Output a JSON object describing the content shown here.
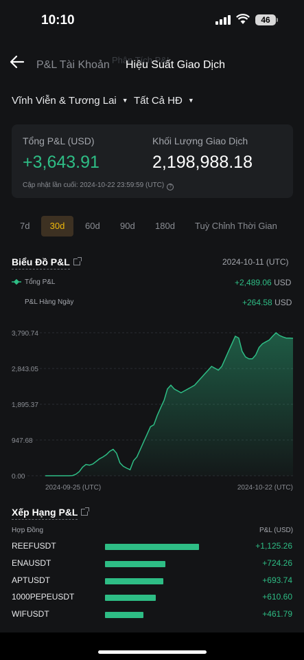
{
  "status_bar": {
    "time": "10:10",
    "battery": "46"
  },
  "header": {
    "tab_account": "P&L Tài Khoản",
    "tab_ghost": "Phân Tích P&L",
    "tab_active": "Hiệu Suất Giao Dịch"
  },
  "filters": {
    "market": "Vĩnh Viễn & Tương Lai",
    "contract": "Tất Cả HĐ"
  },
  "summary": {
    "pnl_label": "Tổng P&L (USD)",
    "pnl_value": "+3,643.91",
    "volume_label": "Khối Lượng Giao Dịch",
    "volume_value": "2,198,988.18",
    "updated": "Cập nhật lần cuối: 2024-10-22 23:59:59 (UTC)"
  },
  "ranges": [
    "7d",
    "30d",
    "60d",
    "90d",
    "180d",
    "Tuỳ Chỉnh Thời Gian"
  ],
  "ranges_active": "30d",
  "chart_section": {
    "title": "Biểu Đồ P&L",
    "date": "2024-10-11 (UTC)",
    "legend1_label": "Tổng P&L",
    "legend1_value": "+2,489.06",
    "legend2_label": "P&L Hàng Ngày",
    "legend2_value": "+264.58",
    "unit": "USD"
  },
  "chart_data": {
    "type": "area",
    "title": "",
    "xlabel": "",
    "ylabel": "",
    "y_ticks": [
      "3,790.74",
      "2,843.05",
      "1,895.37",
      "947.68",
      "0.00"
    ],
    "y_tick_values": [
      3790.74,
      2843.05,
      1895.37,
      947.68,
      0
    ],
    "ylim": [
      0,
      3790.74
    ],
    "x_tick_labels": [
      "2024-09-25 (UTC)",
      "2024-10-22 (UTC)"
    ],
    "grid": true,
    "series": [
      {
        "values": [
          0,
          0,
          0,
          0,
          0,
          0,
          0,
          0,
          5,
          40,
          110,
          230,
          300,
          280,
          310,
          380,
          450,
          500,
          560,
          650,
          700,
          600,
          340,
          250,
          200,
          160,
          400,
          500,
          700,
          900,
          1100,
          1300,
          1350,
          1600,
          1800,
          2000,
          2300,
          2400,
          2300,
          2250,
          2200,
          2250,
          2300,
          2350,
          2400,
          2500,
          2600,
          2700,
          2800,
          2900,
          2850,
          2800,
          2900,
          3100,
          3300,
          3500,
          3700,
          3650,
          3300,
          3150,
          3100,
          3100,
          3200,
          3400,
          3500,
          3550,
          3600,
          3700,
          3790.74,
          3720,
          3680,
          3650,
          3650,
          3643.91
        ]
      }
    ]
  },
  "ranking": {
    "title": "Xếp Hạng P&L",
    "col_contract": "Hợp Đồng",
    "col_pnl": "P&L (USD)",
    "rows": [
      {
        "symbol": "REEFUSDT",
        "pnl": "+1,125.26",
        "value": 1125.26
      },
      {
        "symbol": "ENAUSDT",
        "pnl": "+724.26",
        "value": 724.26
      },
      {
        "symbol": "APTUSDT",
        "pnl": "+693.74",
        "value": 693.74
      },
      {
        "symbol": "1000PEPEUSDT",
        "pnl": "+610.60",
        "value": 610.6
      },
      {
        "symbol": "WIFUSDT",
        "pnl": "+461.79",
        "value": 461.79
      }
    ]
  },
  "colors": {
    "green": "#2ebd85",
    "accent": "#f0b90b",
    "background": "#131416",
    "card": "#1d1f22"
  }
}
